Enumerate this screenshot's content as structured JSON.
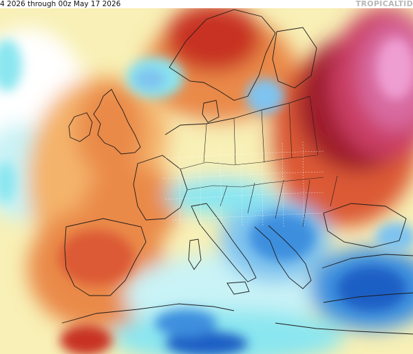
{
  "header": {
    "period_text": "4 2026 through 00z May 17 2026",
    "brand_text": "TROPICALTID"
  },
  "map": {
    "palette": {
      "sea_base": "#ffffff",
      "deep_blue": "#1f5fc4",
      "blue": "#3e8fde",
      "light_blue": "#7fc3ef",
      "cyan": "#8ae6f0",
      "pale_cyan": "#c9f3f6",
      "pale_yellow": "#f8f0b6",
      "yellow": "#f6d98a",
      "light_orange": "#f4b36a",
      "orange": "#ea8a4a",
      "red_orange": "#dc5a35",
      "red": "#c83020",
      "dark_red": "#9e1f2a",
      "crimson": "#c93e63",
      "magenta": "#d86aa0",
      "pink": "#ef9ed2",
      "border_line": "#1a1a1a"
    }
  }
}
